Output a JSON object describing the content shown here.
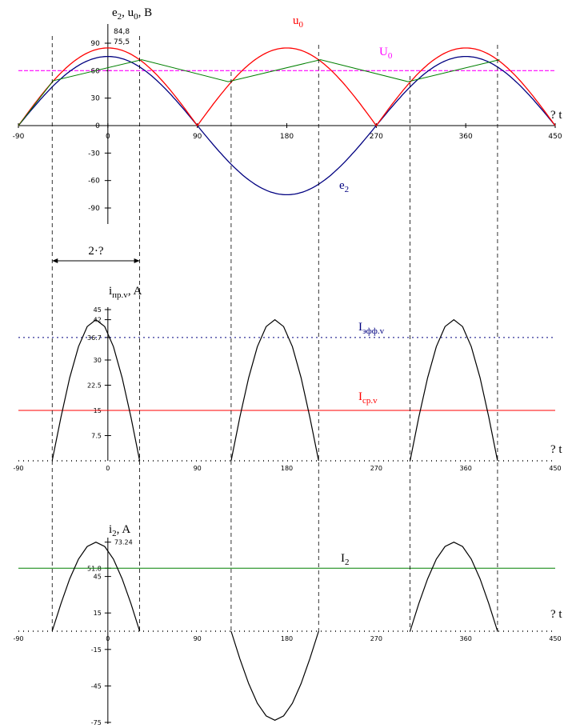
{
  "chart_data": [
    {
      "type": "line",
      "ylabel": {
        "base": "e",
        "sub": "2",
        "mid": ", u",
        "sub2": "0",
        "tail": ", B"
      },
      "xaxis_tail": "? t",
      "xticks": [
        "-90",
        "0",
        "90",
        "180",
        "270",
        "360",
        "450"
      ],
      "yticks": [
        "90",
        "60",
        "30",
        "0",
        "-30",
        "-60",
        "-90"
      ],
      "annotations": [
        "84,8",
        "75,5"
      ],
      "ylim": [
        -90,
        90
      ],
      "xlim": [
        -90,
        450
      ],
      "amplitudes": {
        "e2": 75.5,
        "u0": 84.8
      },
      "U0_level": 60,
      "series": [
        {
          "name": "e2",
          "label_base": "e",
          "label_sub": "2",
          "color": "#000080"
        },
        {
          "name": "u0",
          "label_base": "u",
          "label_sub": "0",
          "color": "#ff0000"
        },
        {
          "name": "U0",
          "label_base": "U",
          "label_sub": "0",
          "color": "#ff00ff"
        },
        {
          "name": "",
          "color": "#008000",
          "points": [
            [
              -90,
              0
            ],
            [
              -55,
              49
            ],
            [
              34,
              72
            ],
            [
              121,
              48
            ],
            [
              214,
              72
            ],
            [
              302,
              48
            ],
            [
              394,
              72
            ]
          ]
        }
      ],
      "interval_label": "2·?"
    },
    {
      "type": "line",
      "ylabel": {
        "base": "i",
        "sub": "пр.v",
        "tail": ", A"
      },
      "xaxis_tail": "? t",
      "xticks": [
        "-90",
        "0",
        "90",
        "180",
        "270",
        "360",
        "450"
      ],
      "yticks": [
        "45",
        "42",
        "36.7",
        "30",
        "22.5",
        "15",
        "7.5"
      ],
      "ylim": [
        0,
        45
      ],
      "xlim": [
        -90,
        450
      ],
      "peak": 42,
      "pulses": [
        [
          -56,
          32
        ],
        [
          124,
          212
        ],
        [
          304,
          392
        ]
      ],
      "series": [
        {
          "name": "Iэфф.v",
          "label_base": "I",
          "label_sub": "эфф.v",
          "value": 36.7,
          "color": "#000080"
        },
        {
          "name": "Iср.v",
          "label_base": "I",
          "label_sub": "ср.v",
          "value": 15,
          "color": "#ff0000"
        }
      ]
    },
    {
      "type": "line",
      "ylabel": {
        "base": "i",
        "sub": "2",
        "tail": ", A"
      },
      "xaxis_tail": "? t",
      "xticks": [
        "-90",
        "0",
        "90",
        "180",
        "270",
        "360",
        "450"
      ],
      "yticks": [
        "73.24",
        "51.8",
        "45",
        "15",
        "-15",
        "-45",
        "-75"
      ],
      "ylim": [
        -75,
        75
      ],
      "xlim": [
        -90,
        450
      ],
      "peak": 73.24,
      "pulses": [
        [
          -56,
          32,
          1
        ],
        [
          124,
          212,
          -1
        ],
        [
          304,
          392,
          1
        ]
      ],
      "series": [
        {
          "name": "I2",
          "label_base": "I",
          "label_sub": "2",
          "value": 51.8,
          "color": "#008000"
        }
      ]
    }
  ]
}
